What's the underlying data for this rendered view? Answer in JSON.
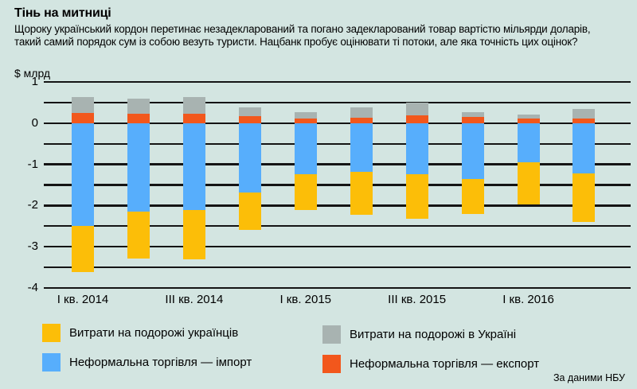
{
  "header": {
    "title": "Тінь на митниці",
    "subtitle_line1": "Щороку український кордон перетинає незадекларований та погано задекларований товар вартістю мільярди доларів,",
    "subtitle_line2": "такий самий порядок сум із собою везуть туристи. Нацбанк пробує оцінювати ті потоки, але яка точність цих оцінок?"
  },
  "source_note": "За даними НБУ",
  "colors": {
    "background": "#d3e5e1",
    "gridline": "#141414",
    "yellow": "#fcbe08",
    "blue": "#57aefc",
    "orange": "#f2571c",
    "gray": "#a8b3b1"
  },
  "chart_data": {
    "type": "bar",
    "stacked": true,
    "unit_label": "$ млрд",
    "title": "Тінь на митниці",
    "ylim": [
      -4,
      1
    ],
    "gridline_step": 0.5,
    "grid": true,
    "n_bars": 10,
    "y_ticks": [
      {
        "value": 1,
        "label": "1"
      },
      {
        "value": 0,
        "label": "0"
      },
      {
        "value": -1,
        "label": "-1"
      },
      {
        "value": -2,
        "label": "-2"
      },
      {
        "value": -3,
        "label": "-3"
      },
      {
        "value": -4,
        "label": "-4"
      }
    ],
    "x_tick_labels": [
      {
        "bar_index": 0,
        "label": "І кв. 2014"
      },
      {
        "bar_index": 2,
        "label": "ІІІ кв. 2014"
      },
      {
        "bar_index": 4,
        "label": "І кв. 2015"
      },
      {
        "bar_index": 6,
        "label": "ІІІ кв. 2015"
      },
      {
        "bar_index": 8,
        "label": "І кв. 2016"
      }
    ],
    "series": [
      {
        "name": "Неформальна торгівля — імпорт",
        "color": "#57aefc",
        "values": [
          -2.5,
          -2.14,
          -2.1,
          -1.68,
          -1.24,
          -1.19,
          -1.24,
          -1.35,
          -0.95,
          -1.22
        ]
      },
      {
        "name": "Витрати на подорожі українців",
        "color": "#fcbe08",
        "values": [
          -1.12,
          -1.14,
          -1.2,
          -0.91,
          -0.86,
          -1.03,
          -1.09,
          -0.85,
          -1.03,
          -1.18
        ]
      },
      {
        "name": "Неформальна торгівля — експорт",
        "color": "#f2571c",
        "values": [
          0.24,
          0.23,
          0.23,
          0.17,
          0.12,
          0.13,
          0.18,
          0.15,
          0.11,
          0.11
        ]
      },
      {
        "name": "Витрати на подорожі в Україні",
        "color": "#a8b3b1",
        "values": [
          0.39,
          0.37,
          0.41,
          0.22,
          0.15,
          0.25,
          0.31,
          0.12,
          0.1,
          0.24
        ]
      }
    ],
    "legend": [
      {
        "label": "Витрати на подорожі українців",
        "color": "#fcbe08",
        "column": "left"
      },
      {
        "label": "Неформальна торгівля — імпорт",
        "color": "#57aefc",
        "column": "left"
      },
      {
        "label": "Витрати на подорожі в Україні",
        "color": "#a8b3b1",
        "column": "right"
      },
      {
        "label": "Неформальна торгівля — експорт",
        "color": "#f2571c",
        "column": "right"
      }
    ]
  }
}
